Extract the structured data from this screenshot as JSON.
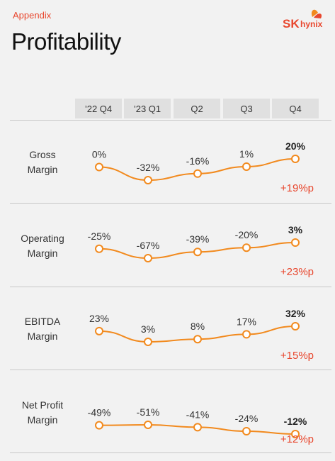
{
  "header": {
    "kicker": "Appendix",
    "title": "Profitability",
    "logo_sk": "SK",
    "logo_hynix": "hynix"
  },
  "columns": [
    "’22 Q4",
    "’23 Q1",
    "Q2",
    "Q3",
    "Q4"
  ],
  "colors": {
    "accent": "#e8472e",
    "line": "#f28a1e"
  },
  "chart_data": {
    "type": "line",
    "categories": [
      "’22 Q4",
      "’23 Q1",
      "Q2",
      "Q3",
      "Q4"
    ],
    "series": [
      {
        "name": "Gross Margin",
        "label_lines": [
          "Gross",
          "Margin"
        ],
        "values": [
          0,
          -32,
          -16,
          1,
          20
        ],
        "labels": [
          "0%",
          "-32%",
          "-16%",
          "1%",
          "20%"
        ],
        "change": "+19%p"
      },
      {
        "name": "Operating Margin",
        "label_lines": [
          "Operating",
          "Margin"
        ],
        "values": [
          -25,
          -67,
          -39,
          -20,
          3
        ],
        "labels": [
          "-25%",
          "-67%",
          "-39%",
          "-20%",
          "3%"
        ],
        "change": "+23%p"
      },
      {
        "name": "EBITDA Margin",
        "label_lines": [
          "EBITDA",
          "Margin"
        ],
        "values": [
          23,
          3,
          8,
          17,
          32
        ],
        "labels": [
          "23%",
          "3%",
          "8%",
          "17%",
          "32%"
        ],
        "change": "+15%p"
      },
      {
        "name": "Net Profit Margin",
        "label_lines": [
          "Net Profit",
          "Margin"
        ],
        "values": [
          -49,
          -51,
          -41,
          -24,
          -12
        ],
        "labels": [
          "-49%",
          "-51%",
          "-41%",
          "-24%",
          "-12%"
        ],
        "change": "+12%p"
      }
    ]
  }
}
